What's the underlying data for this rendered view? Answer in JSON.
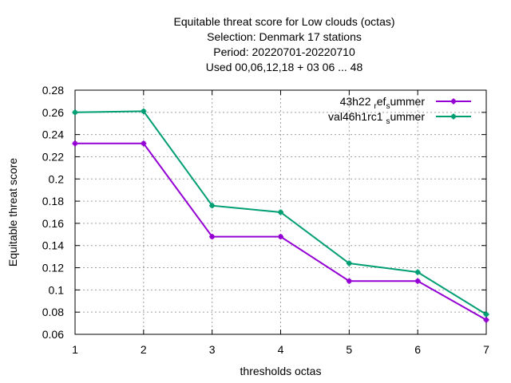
{
  "chart_data": {
    "type": "line",
    "title_lines": [
      "Equitable threat score  for Low clouds (octas)",
      "Selection: Denmark     17 stations",
      "Period: 20220701-20220710",
      "Used  00,06,12,18  + 03 06 ... 48"
    ],
    "xlabel": "thresholds octas",
    "ylabel": "Equitable threat score",
    "x": [
      1,
      2,
      3,
      4,
      5,
      6,
      7
    ],
    "xlim": [
      1,
      7
    ],
    "ylim": [
      0.06,
      0.28
    ],
    "yticks": [
      0.06,
      0.08,
      0.1,
      0.12,
      0.14,
      0.16,
      0.18,
      0.2,
      0.22,
      0.24,
      0.26,
      0.28
    ],
    "ytick_labels": [
      "0.06",
      "0.08",
      "0.1",
      "0.12",
      "0.14",
      "0.16",
      "0.18",
      "0.2",
      "0.22",
      "0.24",
      "0.26",
      "0.28"
    ],
    "xtick_labels": [
      "1",
      "2",
      "3",
      "4",
      "5",
      "6",
      "7"
    ],
    "grid": true,
    "legend_position": "top-right",
    "series": [
      {
        "name": "43h22_ref_summer",
        "legend_parts": [
          [
            "43h22 ",
            ""
          ],
          [
            "r",
            "sub"
          ],
          [
            "ef",
            ""
          ],
          [
            "s",
            "sub"
          ],
          [
            "ummer",
            ""
          ]
        ],
        "color": "#9400d3",
        "values": [
          0.232,
          0.232,
          0.148,
          0.148,
          0.108,
          0.108,
          0.073
        ]
      },
      {
        "name": "val46h1rc1_summer",
        "legend_parts": [
          [
            "val46h1rc1 ",
            ""
          ],
          [
            "s",
            "sub"
          ],
          [
            "ummer",
            ""
          ]
        ],
        "color": "#009e73",
        "values": [
          0.26,
          0.261,
          0.176,
          0.17,
          0.124,
          0.116,
          0.078
        ]
      }
    ]
  }
}
